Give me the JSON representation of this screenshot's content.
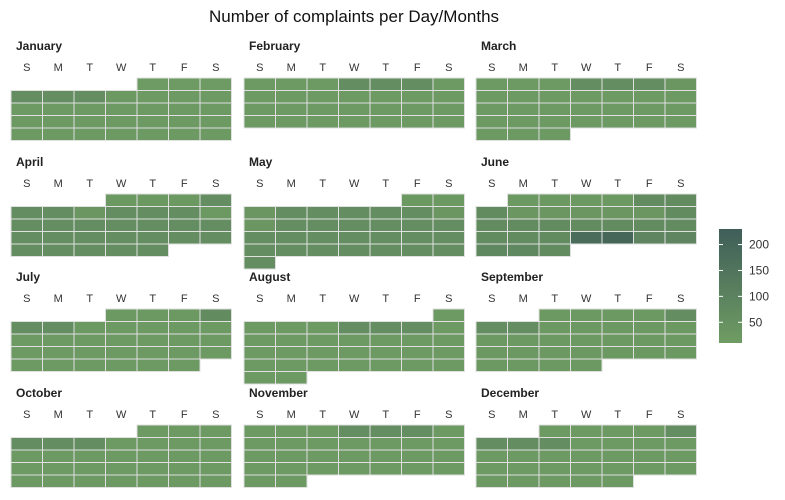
{
  "chart_data": {
    "type": "heatmap",
    "title": "Number of complaints per Day/Months",
    "weekday_labels": [
      "S",
      "M",
      "T",
      "W",
      "T",
      "F",
      "S"
    ],
    "colorbar": {
      "ticks": [
        50,
        100,
        150,
        200
      ],
      "range": [
        10,
        230
      ],
      "colors": [
        "#6f9c63",
        "#3f5e59"
      ]
    },
    "cell_fill_color": "#7a9e5c",
    "months": [
      {
        "name": "January",
        "start_weekday": 4,
        "days": 31,
        "values": [
          15,
          15,
          15,
          60,
          60,
          60,
          25,
          20,
          20,
          20,
          20,
          20,
          20,
          20,
          20,
          20,
          20,
          20,
          20,
          20,
          20,
          20,
          20,
          20,
          20,
          20,
          20,
          20,
          20,
          20,
          20
        ]
      },
      {
        "name": "February",
        "start_weekday": 0,
        "days": 28,
        "values": [
          20,
          20,
          20,
          60,
          60,
          60,
          20,
          20,
          20,
          20,
          20,
          20,
          20,
          20,
          20,
          20,
          20,
          20,
          20,
          20,
          20,
          20,
          20,
          20,
          20,
          20,
          20,
          20
        ]
      },
      {
        "name": "March",
        "start_weekday": 0,
        "days": 31,
        "values": [
          20,
          20,
          20,
          60,
          60,
          60,
          30,
          20,
          20,
          20,
          20,
          20,
          20,
          20,
          20,
          20,
          20,
          20,
          20,
          20,
          20,
          20,
          20,
          20,
          20,
          20,
          20,
          20,
          20,
          20,
          20
        ]
      },
      {
        "name": "April",
        "start_weekday": 3,
        "days": 30,
        "values": [
          25,
          25,
          25,
          60,
          60,
          60,
          30,
          60,
          60,
          60,
          25,
          60,
          60,
          60,
          60,
          60,
          60,
          60,
          60,
          60,
          60,
          60,
          60,
          60,
          60,
          60,
          60,
          60,
          60,
          60
        ]
      },
      {
        "name": "May",
        "start_weekday": 5,
        "days": 31,
        "values": [
          25,
          25,
          30,
          60,
          60,
          60,
          60,
          60,
          30,
          30,
          60,
          60,
          60,
          60,
          60,
          60,
          60,
          60,
          60,
          60,
          60,
          60,
          60,
          60,
          60,
          60,
          60,
          60,
          60,
          60,
          60
        ]
      },
      {
        "name": "June",
        "start_weekday": 1,
        "days": 30,
        "values": [
          25,
          25,
          25,
          25,
          70,
          70,
          70,
          30,
          30,
          30,
          30,
          30,
          70,
          70,
          70,
          70,
          70,
          70,
          70,
          70,
          70,
          70,
          70,
          180,
          200,
          90,
          90,
          80,
          80,
          70
        ]
      },
      {
        "name": "July",
        "start_weekday": 3,
        "days": 31,
        "values": [
          25,
          25,
          25,
          70,
          60,
          60,
          25,
          20,
          20,
          20,
          20,
          20,
          20,
          20,
          20,
          20,
          20,
          20,
          20,
          20,
          20,
          20,
          20,
          20,
          20,
          20,
          20,
          20,
          20,
          20,
          20
        ]
      },
      {
        "name": "August",
        "start_weekday": 6,
        "days": 31,
        "values": [
          20,
          20,
          20,
          20,
          60,
          60,
          60,
          20,
          20,
          20,
          20,
          20,
          20,
          20,
          20,
          20,
          20,
          20,
          20,
          20,
          20,
          20,
          20,
          20,
          20,
          20,
          20,
          20,
          20,
          20,
          20
        ]
      },
      {
        "name": "September",
        "start_weekday": 2,
        "days": 30,
        "values": [
          25,
          25,
          25,
          25,
          60,
          60,
          60,
          25,
          25,
          25,
          25,
          25,
          25,
          25,
          25,
          25,
          25,
          25,
          25,
          25,
          25,
          25,
          25,
          25,
          25,
          25,
          25,
          25,
          25,
          25
        ]
      },
      {
        "name": "October",
        "start_weekday": 4,
        "days": 31,
        "values": [
          20,
          20,
          20,
          60,
          60,
          60,
          20,
          20,
          20,
          20,
          20,
          20,
          20,
          20,
          20,
          20,
          20,
          20,
          20,
          20,
          20,
          20,
          20,
          20,
          20,
          20,
          20,
          20,
          20,
          20,
          20
        ]
      },
      {
        "name": "November",
        "start_weekday": 0,
        "days": 30,
        "values": [
          20,
          20,
          20,
          60,
          60,
          60,
          20,
          20,
          20,
          20,
          20,
          20,
          20,
          20,
          20,
          20,
          20,
          20,
          20,
          20,
          20,
          20,
          20,
          20,
          20,
          20,
          20,
          20,
          20,
          20
        ]
      },
      {
        "name": "December",
        "start_weekday": 2,
        "days": 31,
        "values": [
          20,
          20,
          20,
          20,
          60,
          60,
          60,
          60,
          20,
          20,
          20,
          20,
          20,
          20,
          20,
          20,
          20,
          20,
          20,
          20,
          20,
          20,
          20,
          20,
          20,
          20,
          20,
          20,
          20,
          20,
          20
        ]
      }
    ]
  }
}
